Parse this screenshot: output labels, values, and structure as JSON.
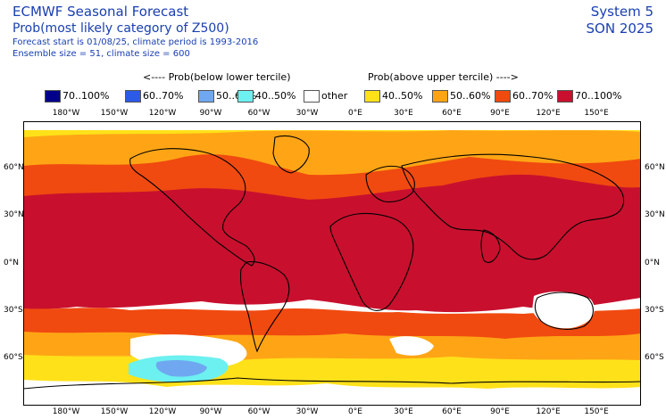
{
  "header": {
    "title": "ECMWF Seasonal Forecast",
    "subtitle": "Prob(most likely category of Z500)",
    "line3": "Forecast start is 01/08/25, climate period is 1993-2016",
    "line4": "Ensemble size = 51, climate size = 600",
    "system": "System 5",
    "season": "SON 2025"
  },
  "legend": {
    "below_title": "<---- Prob(below lower tercile)",
    "above_title": "Prob(above upper tercile) ---->",
    "items": [
      {
        "label": "70..100%",
        "color": "#00008b"
      },
      {
        "label": "60..70%",
        "color": "#2a5ae6"
      },
      {
        "label": "50..60%",
        "color": "#6fa8f0"
      },
      {
        "label": "40..50%",
        "color": "#6cf0f0"
      },
      {
        "label": "other",
        "color": "#ffffff"
      },
      {
        "label": "40..50%",
        "color": "#ffe11a"
      },
      {
        "label": "50..60%",
        "color": "#ffa515"
      },
      {
        "label": "60..70%",
        "color": "#f04a10"
      },
      {
        "label": "70..100%",
        "color": "#c8102e"
      }
    ]
  },
  "axes": {
    "lon_labels": [
      "180°W",
      "150°W",
      "120°W",
      "90°W",
      "60°W",
      "30°W",
      "0°E",
      "30°E",
      "60°E",
      "90°E",
      "120°E",
      "150°E"
    ],
    "lat_labels": [
      "60°N",
      "30°N",
      "0°N",
      "30°S",
      "60°S"
    ]
  }
}
